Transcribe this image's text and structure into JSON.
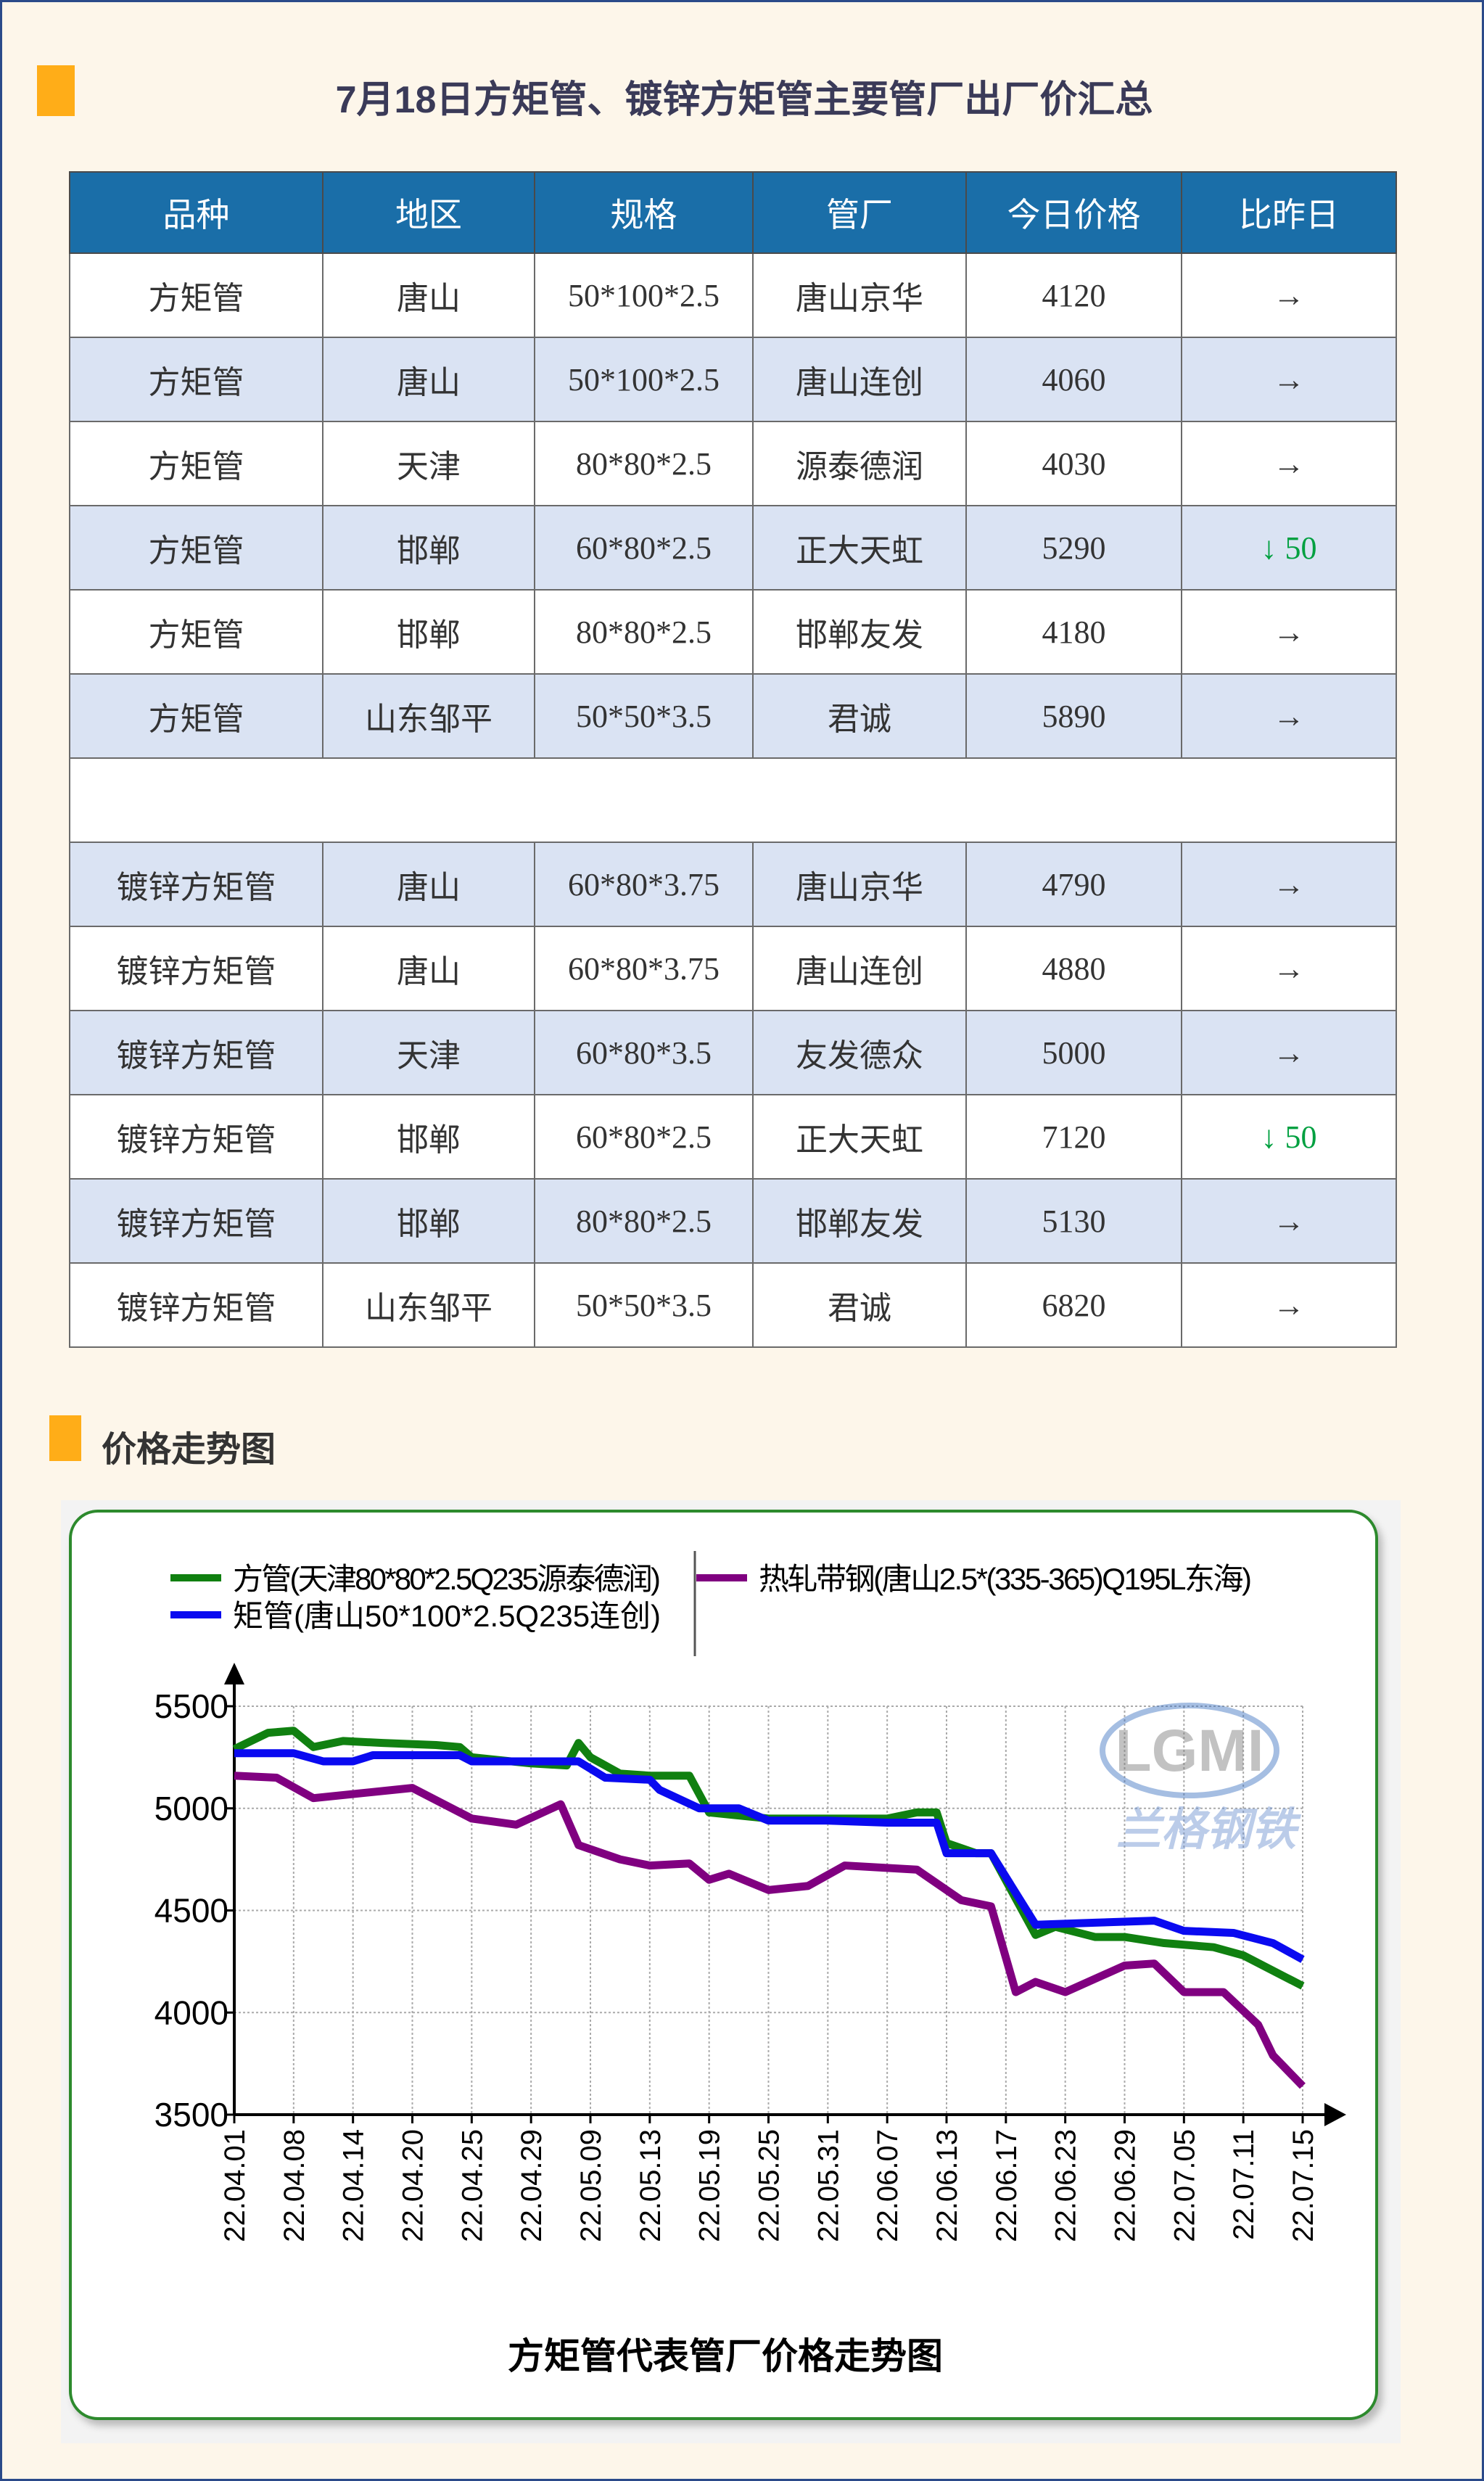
{
  "header": {
    "title": "7月18日方矩管、镀锌方矩管主要管厂出厂价汇总"
  },
  "table": {
    "columns": [
      "品种",
      "地区",
      "规格",
      "管厂",
      "今日价格",
      "比昨日"
    ],
    "rows": [
      [
        "方矩管",
        "唐山",
        "50*100*2.5",
        "唐山京华",
        "4120",
        "→"
      ],
      [
        "方矩管",
        "唐山",
        "50*100*2.5",
        "唐山连创",
        "4060",
        "→"
      ],
      [
        "方矩管",
        "天津",
        "80*80*2.5",
        "源泰德润",
        "4030",
        "→"
      ],
      [
        "方矩管",
        "邯郸",
        "60*80*2.5",
        "正大天虹",
        "5290",
        "↓ 50"
      ],
      [
        "方矩管",
        "邯郸",
        "80*80*2.5",
        "邯郸友发",
        "4180",
        "→"
      ],
      [
        "方矩管",
        "山东邹平",
        "50*50*3.5",
        "君诚",
        "5890",
        "→"
      ],
      null,
      [
        "镀锌方矩管",
        "唐山",
        "60*80*3.75",
        "唐山京华",
        "4790",
        "→"
      ],
      [
        "镀锌方矩管",
        "唐山",
        "60*80*3.75",
        "唐山连创",
        "4880",
        "→"
      ],
      [
        "镀锌方矩管",
        "天津",
        "60*80*3.5",
        "友发德众",
        "5000",
        "→"
      ],
      [
        "镀锌方矩管",
        "邯郸",
        "60*80*2.5",
        "正大天虹",
        "7120",
        "↓ 50"
      ],
      [
        "镀锌方矩管",
        "邯郸",
        "80*80*2.5",
        "邯郸友发",
        "5130",
        "→"
      ],
      [
        "镀锌方矩管",
        "山东邹平",
        "50*50*3.5",
        "君诚",
        "6820",
        "→"
      ]
    ]
  },
  "section2": {
    "title": "价格走势图"
  },
  "colors": {
    "accent": "#ffad18",
    "header_bg": "#1a6ea8",
    "alt_row": "#dae3f3",
    "down": "#00a040",
    "frame": "#2d8a2d"
  },
  "chart_data": {
    "type": "line",
    "title": "方矩管代表管厂价格走势图",
    "watermark": {
      "logo": "LGMI",
      "text": "兰格钢铁"
    },
    "categories": [
      "22.04.01",
      "22.04.08",
      "22.04.14",
      "22.04.20",
      "22.04.25",
      "22.04.29",
      "22.05.09",
      "22.05.13",
      "22.05.19",
      "22.05.25",
      "22.05.31",
      "22.06.07",
      "22.06.13",
      "22.06.17",
      "22.06.23",
      "22.06.29",
      "22.07.05",
      "22.07.11",
      "22.07.15"
    ],
    "ylim": [
      3500,
      5500
    ],
    "yticks": [
      3500,
      4000,
      4500,
      5000,
      5500
    ],
    "grid": true,
    "legend": "top",
    "series": [
      {
        "name": "方管(天津80*80*2.5Q235源泰德润)",
        "color": "#108010",
        "points": [
          [
            "22.04.01",
            5290
          ],
          [
            "22.04.05",
            5370
          ],
          [
            "22.04.08",
            5380
          ],
          [
            "22.04.10",
            5300
          ],
          [
            "22.04.13",
            5330
          ],
          [
            "22.04.17",
            5320
          ],
          [
            "22.04.22",
            5310
          ],
          [
            "22.04.24",
            5300
          ],
          [
            "22.04.25",
            5250
          ],
          [
            "22.04.29",
            5220
          ],
          [
            "22.05.05",
            5210
          ],
          [
            "22.05.07",
            5320
          ],
          [
            "22.05.09",
            5250
          ],
          [
            "22.05.11",
            5170
          ],
          [
            "22.05.13",
            5160
          ],
          [
            "22.05.17",
            5160
          ],
          [
            "22.05.19",
            4980
          ],
          [
            "22.05.25",
            4950
          ],
          [
            "22.05.31",
            4950
          ],
          [
            "22.06.07",
            4950
          ],
          [
            "22.06.10",
            4980
          ],
          [
            "22.06.12",
            4980
          ],
          [
            "22.06.13",
            4830
          ],
          [
            "22.06.15",
            4780
          ],
          [
            "22.06.16",
            4780
          ],
          [
            "22.06.20",
            4380
          ],
          [
            "22.06.22",
            4420
          ],
          [
            "22.06.26",
            4370
          ],
          [
            "22.06.29",
            4370
          ],
          [
            "22.07.03",
            4340
          ],
          [
            "22.07.08",
            4320
          ],
          [
            "22.07.11",
            4280
          ],
          [
            "22.07.15",
            4130
          ]
        ]
      },
      {
        "name": "矩管(唐山50*100*2.5Q235连创)",
        "color": "#0a0af0",
        "points": [
          [
            "22.04.01",
            5270
          ],
          [
            "22.04.08",
            5270
          ],
          [
            "22.04.11",
            5230
          ],
          [
            "22.04.14",
            5230
          ],
          [
            "22.04.16",
            5260
          ],
          [
            "22.04.24",
            5260
          ],
          [
            "22.04.25",
            5230
          ],
          [
            "22.05.07",
            5230
          ],
          [
            "22.05.10",
            5150
          ],
          [
            "22.05.13",
            5140
          ],
          [
            "22.05.14",
            5090
          ],
          [
            "22.05.18",
            5000
          ],
          [
            "22.05.22",
            5000
          ],
          [
            "22.05.25",
            4940
          ],
          [
            "22.05.31",
            4940
          ],
          [
            "22.06.07",
            4930
          ],
          [
            "22.06.12",
            4930
          ],
          [
            "22.06.13",
            4780
          ],
          [
            "22.06.16",
            4780
          ],
          [
            "22.06.20",
            4430
          ],
          [
            "22.06.26",
            4440
          ],
          [
            "22.07.02",
            4450
          ],
          [
            "22.07.05",
            4400
          ],
          [
            "22.07.10",
            4390
          ],
          [
            "22.07.13",
            4340
          ],
          [
            "22.07.15",
            4260
          ]
        ]
      },
      {
        "name": "热轧带钢(唐山2.5*(335-365)Q195L东海)",
        "color": "#800080",
        "points": [
          [
            "22.04.01",
            5160
          ],
          [
            "22.04.06",
            5150
          ],
          [
            "22.04.10",
            5050
          ],
          [
            "22.04.14",
            5070
          ],
          [
            "22.04.20",
            5100
          ],
          [
            "22.04.25",
            4950
          ],
          [
            "22.04.28",
            4920
          ],
          [
            "22.05.04",
            5020
          ],
          [
            "22.05.07",
            4820
          ],
          [
            "22.05.11",
            4750
          ],
          [
            "22.05.13",
            4720
          ],
          [
            "22.05.17",
            4730
          ],
          [
            "22.05.19",
            4650
          ],
          [
            "22.05.21",
            4680
          ],
          [
            "22.05.25",
            4600
          ],
          [
            "22.05.29",
            4620
          ],
          [
            "22.06.02",
            4720
          ],
          [
            "22.06.10",
            4700
          ],
          [
            "22.06.14",
            4550
          ],
          [
            "22.06.16",
            4520
          ],
          [
            "22.06.18",
            4100
          ],
          [
            "22.06.20",
            4150
          ],
          [
            "22.06.23",
            4100
          ],
          [
            "22.06.29",
            4230
          ],
          [
            "22.07.02",
            4240
          ],
          [
            "22.07.05",
            4100
          ],
          [
            "22.07.09",
            4100
          ],
          [
            "22.07.12",
            3940
          ],
          [
            "22.07.13",
            3790
          ],
          [
            "22.07.15",
            3640
          ]
        ]
      }
    ]
  }
}
